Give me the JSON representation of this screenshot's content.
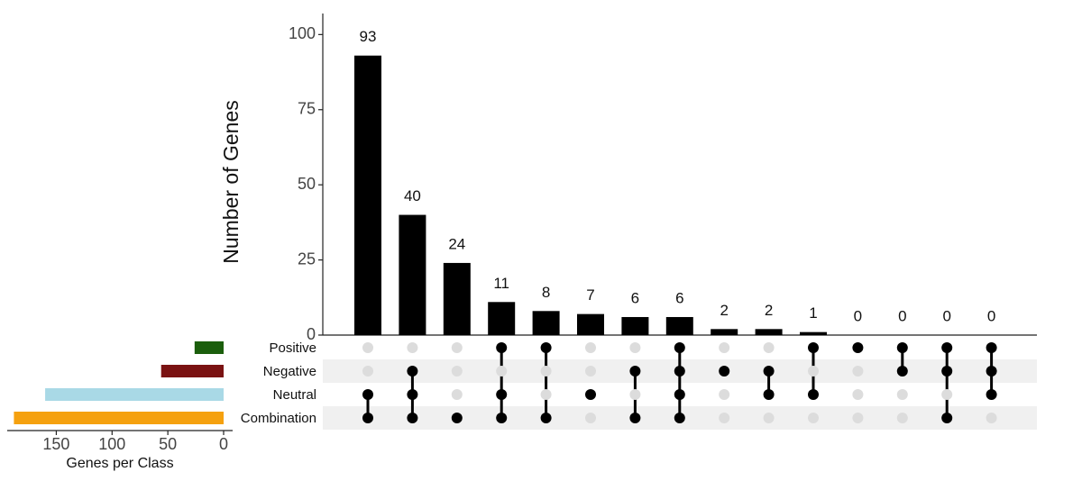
{
  "chart_data": {
    "type": "upset",
    "y_label": "Number of Genes",
    "values": [
      93,
      40,
      24,
      11,
      8,
      7,
      6,
      6,
      2,
      2,
      1,
      0,
      0,
      0,
      0
    ],
    "bar_color": "#000000",
    "ylim": [
      0,
      107
    ],
    "yticks": [
      0,
      25,
      50,
      75,
      100
    ],
    "sets": {
      "names": [
        "Positive",
        "Negative",
        "Neutral",
        "Combination"
      ],
      "sizes": [
        26,
        56,
        160,
        188
      ],
      "colors": [
        "#1b5e0c",
        "#7a1212",
        "#a9d9e6",
        "#f5a10f"
      ],
      "xlim": [
        0,
        194
      ],
      "xticks": [
        0,
        50,
        100,
        150
      ],
      "x_label": "Genes per Class"
    },
    "matrix": [
      [
        false,
        false,
        true,
        true
      ],
      [
        false,
        true,
        true,
        true
      ],
      [
        false,
        false,
        false,
        true
      ],
      [
        true,
        false,
        true,
        true
      ],
      [
        true,
        false,
        false,
        true
      ],
      [
        false,
        false,
        true,
        false
      ],
      [
        false,
        true,
        false,
        true
      ],
      [
        true,
        true,
        true,
        true
      ],
      [
        false,
        true,
        false,
        false
      ],
      [
        false,
        true,
        true,
        false
      ],
      [
        true,
        false,
        true,
        false
      ],
      [
        true,
        false,
        false,
        false
      ],
      [
        true,
        true,
        false,
        false
      ],
      [
        true,
        true,
        false,
        true
      ],
      [
        true,
        true,
        true,
        false
      ]
    ]
  }
}
